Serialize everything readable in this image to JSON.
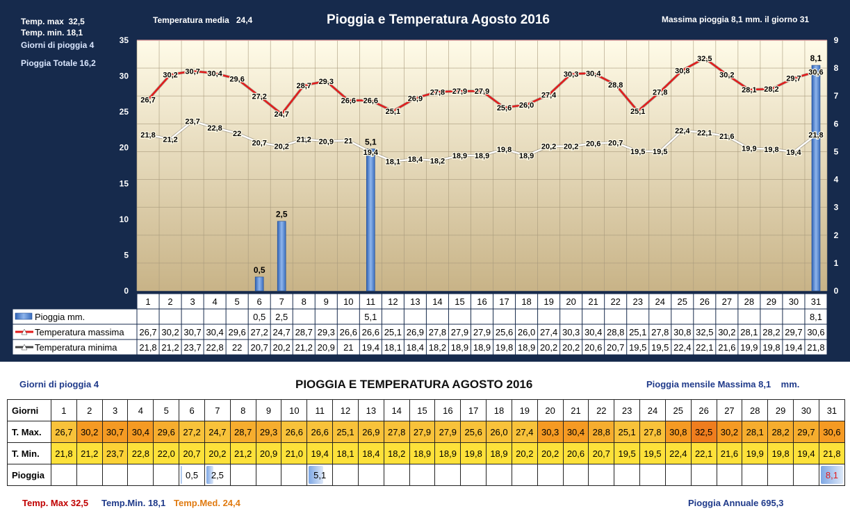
{
  "header": {
    "temp_max_label": "Temp. max",
    "temp_max_value": "32,5",
    "temp_min_label": "Temp.  min.",
    "temp_min_value": "18,1",
    "giorni_label": "Giorni  di pioggia",
    "giorni_value": "4",
    "pioggia_totale_label": "Pioggia Totale",
    "pioggia_totale_value": "16,2",
    "temp_media_label": "Temperatura media",
    "temp_media_value": "24,4",
    "title": "Pioggia e Temperatura Agosto 2016",
    "massima_label": "Massima pioggia",
    "massima_value": "8,1",
    "massima_suffix": "mm.  il giorno 31"
  },
  "chart_data": {
    "type": "line",
    "title": "Pioggia e Temperatura Agosto 2016",
    "categories": [
      "1",
      "2",
      "3",
      "4",
      "5",
      "6",
      "7",
      "8",
      "9",
      "10",
      "11",
      "12",
      "13",
      "14",
      "15",
      "16",
      "17",
      "18",
      "19",
      "20",
      "21",
      "22",
      "23",
      "24",
      "25",
      "26",
      "27",
      "28",
      "29",
      "30",
      "31"
    ],
    "ylim_left": [
      0,
      35
    ],
    "yticks_left": [
      0,
      5,
      10,
      15,
      20,
      25,
      30,
      35
    ],
    "ylim_right": [
      0,
      9
    ],
    "yticks_right": [
      0,
      1,
      2,
      3,
      4,
      5,
      6,
      7,
      8,
      9
    ],
    "grid": true,
    "series": [
      {
        "name": "Pioggia mm.",
        "type": "bar",
        "axis": "right",
        "values": [
          null,
          null,
          null,
          null,
          null,
          0.5,
          2.5,
          null,
          null,
          null,
          5.1,
          null,
          null,
          null,
          null,
          null,
          null,
          null,
          null,
          null,
          null,
          null,
          null,
          null,
          null,
          null,
          null,
          null,
          null,
          null,
          8.1
        ],
        "labels": [
          "",
          "",
          "",
          "",
          "",
          "0,5",
          "2,5",
          "",
          "",
          "",
          "5,1",
          "",
          "",
          "",
          "",
          "",
          "",
          "",
          "",
          "",
          "",
          "",
          "",
          "",
          "",
          "",
          "",
          "",
          "",
          "",
          "8,1"
        ]
      },
      {
        "name": "Temperatura massima",
        "type": "line",
        "axis": "left",
        "color": "#e21b1b",
        "values": [
          26.7,
          30.2,
          30.7,
          30.4,
          29.6,
          27.2,
          24.7,
          28.7,
          29.3,
          26.6,
          26.6,
          25.1,
          26.9,
          27.8,
          27.9,
          27.9,
          25.6,
          26.0,
          27.4,
          30.3,
          30.4,
          28.8,
          25.1,
          27.8,
          30.8,
          32.5,
          30.2,
          28.1,
          28.2,
          29.7,
          30.6
        ],
        "labels": [
          "26,7",
          "30,2",
          "30,7",
          "30,4",
          "29,6",
          "27,2",
          "24,7",
          "28,7",
          "29,3",
          "26,6",
          "26,6",
          "25,1",
          "26,9",
          "27,8",
          "27,9",
          "27,9",
          "25,6",
          "26,0",
          "27,4",
          "30,3",
          "30,4",
          "28,8",
          "25,1",
          "27,8",
          "30,8",
          "32,5",
          "30,2",
          "28,1",
          "28,2",
          "29,7",
          "30,6"
        ]
      },
      {
        "name": "Temperatura minima",
        "type": "line",
        "axis": "left",
        "color": "#ffffff",
        "values": [
          21.8,
          21.2,
          23.7,
          22.8,
          22.0,
          20.7,
          20.2,
          21.2,
          20.9,
          21.0,
          19.4,
          18.1,
          18.4,
          18.2,
          18.9,
          18.9,
          19.8,
          18.9,
          20.2,
          20.2,
          20.6,
          20.7,
          19.5,
          19.5,
          22.4,
          22.1,
          21.6,
          19.9,
          19.8,
          19.4,
          21.8
        ],
        "labels": [
          "21,8",
          "21,2",
          "23,7",
          "22,8",
          "22",
          "20,7",
          "20,2",
          "21,2",
          "20,9",
          "21",
          "19,4",
          "18,1",
          "18,4",
          "18,2",
          "18,9",
          "18,9",
          "19,8",
          "18,9",
          "20,2",
          "20,2",
          "20,6",
          "20,7",
          "19,5",
          "19,5",
          "22,4",
          "22,1",
          "21,6",
          "19,9",
          "19,8",
          "19,4",
          "21,8"
        ]
      }
    ]
  },
  "bottom": {
    "giorni_label": "Giorni di pioggia",
    "giorni_value": "4",
    "title": "PIOGGIA E TEMPERATURA AGOSTO 2016",
    "mensile_label": "Pioggia mensile Massima",
    "mensile_value": "8,1",
    "mensile_unit": "mm.",
    "row_labels": {
      "giorni": "Giorni",
      "tmax": "T. Max.",
      "tmin": "T. Min.",
      "pioggia": "Pioggia"
    },
    "tmax_strings": [
      "26,7",
      "30,2",
      "30,7",
      "30,4",
      "29,6",
      "27,2",
      "24,7",
      "28,7",
      "29,3",
      "26,6",
      "26,6",
      "25,1",
      "26,9",
      "27,8",
      "27,9",
      "27,9",
      "25,6",
      "26,0",
      "27,4",
      "30,3",
      "30,4",
      "28,8",
      "25,1",
      "27,8",
      "30,8",
      "32,5",
      "30,2",
      "28,1",
      "28,2",
      "29,7",
      "30,6"
    ],
    "tmin_strings": [
      "21,8",
      "21,2",
      "23,7",
      "22,8",
      "22,0",
      "20,7",
      "20,2",
      "21,2",
      "20,9",
      "21,0",
      "19,4",
      "18,1",
      "18,4",
      "18,2",
      "18,9",
      "18,9",
      "19,8",
      "18,9",
      "20,2",
      "20,2",
      "20,6",
      "20,7",
      "19,5",
      "19,5",
      "22,4",
      "22,1",
      "21,6",
      "19,9",
      "19,8",
      "19,4",
      "21,8"
    ],
    "footer": {
      "tmax_label": "Temp. Max",
      "tmax_value": "32,5",
      "tmin_label": "Temp.Min.",
      "tmin_value": "18,1",
      "tmed_label": "Temp.Med.",
      "tmed_value": "24,4",
      "annuale_label": "Pioggia Annuale",
      "annuale_value": "695,3"
    }
  },
  "colors": {
    "panel_bg": "#162a4c",
    "plot_top": "#fffbe8",
    "plot_bottom": "#c8b387",
    "tmax_line": "#e21b1b",
    "tmin_line": "#ffffff",
    "rain_bar": "#4f86d3",
    "tmax_hot": "#f59a23",
    "tmax_warm": "#f8c23a",
    "tmin_cell": "#fde13a",
    "highlight_red": "#e21b1b"
  }
}
